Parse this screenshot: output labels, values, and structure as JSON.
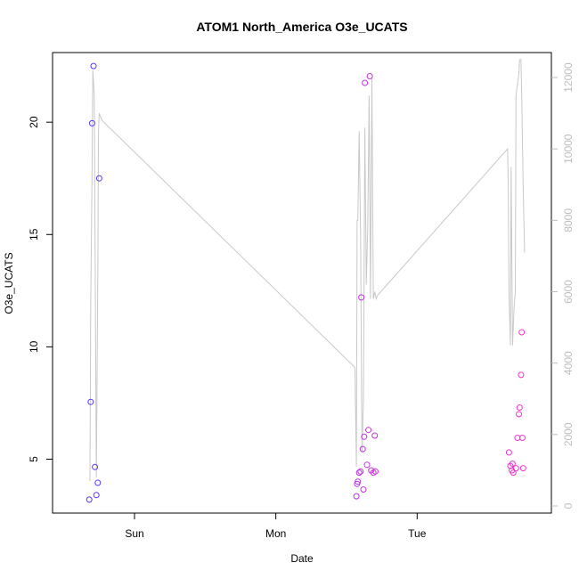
{
  "chart_data": {
    "type": "scatter",
    "title": "ATOM1 North_America O3e_UCATS",
    "xlabel": "Date",
    "ylabel": "O3e_UCATS",
    "x_ticks": [
      {
        "label": "Sun",
        "value": 1.0
      },
      {
        "label": "Mon",
        "value": 2.0
      },
      {
        "label": "Tue",
        "value": 3.0
      }
    ],
    "xlim": [
      0.42,
      3.95
    ],
    "ylim": [
      2.6,
      23.1
    ],
    "y_ticks": [
      5,
      10,
      15,
      20
    ],
    "y2lim": [
      -200,
      12700
    ],
    "y2_ticks": [
      0,
      2000,
      4000,
      6000,
      8000,
      10000,
      12000
    ],
    "grid": false,
    "colors": {
      "altitude_line": "#c8c8c8",
      "point_low_start": "#5533ff",
      "point_high_end": "#ff33cc"
    },
    "points": [
      {
        "x": 0.68,
        "y": 3.2,
        "c": 0.0
      },
      {
        "x": 0.69,
        "y": 7.55,
        "c": 0.02
      },
      {
        "x": 0.7,
        "y": 19.95,
        "c": 0.03
      },
      {
        "x": 0.71,
        "y": 22.5,
        "c": 0.04
      },
      {
        "x": 0.72,
        "y": 4.65,
        "c": 0.05
      },
      {
        "x": 0.73,
        "y": 3.4,
        "c": 0.06
      },
      {
        "x": 0.74,
        "y": 3.95,
        "c": 0.07
      },
      {
        "x": 0.75,
        "y": 17.5,
        "c": 0.08
      },
      {
        "x": 2.57,
        "y": 3.35,
        "c": 0.55
      },
      {
        "x": 2.575,
        "y": 3.9,
        "c": 0.56
      },
      {
        "x": 2.58,
        "y": 4.0,
        "c": 0.57
      },
      {
        "x": 2.59,
        "y": 4.4,
        "c": 0.58
      },
      {
        "x": 2.6,
        "y": 4.45,
        "c": 0.59
      },
      {
        "x": 2.605,
        "y": 12.2,
        "c": 0.6
      },
      {
        "x": 2.615,
        "y": 5.45,
        "c": 0.61
      },
      {
        "x": 2.62,
        "y": 3.65,
        "c": 0.62
      },
      {
        "x": 2.625,
        "y": 6.0,
        "c": 0.63
      },
      {
        "x": 2.63,
        "y": 21.75,
        "c": 0.64
      },
      {
        "x": 2.645,
        "y": 4.75,
        "c": 0.65
      },
      {
        "x": 2.655,
        "y": 6.3,
        "c": 0.66
      },
      {
        "x": 2.665,
        "y": 22.05,
        "c": 0.67
      },
      {
        "x": 2.675,
        "y": 4.5,
        "c": 0.68
      },
      {
        "x": 2.69,
        "y": 4.4,
        "c": 0.69
      },
      {
        "x": 2.7,
        "y": 6.05,
        "c": 0.7
      },
      {
        "x": 2.705,
        "y": 4.45,
        "c": 0.71
      },
      {
        "x": 3.65,
        "y": 5.3,
        "c": 0.9
      },
      {
        "x": 3.66,
        "y": 4.7,
        "c": 0.91
      },
      {
        "x": 3.67,
        "y": 4.5,
        "c": 0.92
      },
      {
        "x": 3.675,
        "y": 4.8,
        "c": 0.93
      },
      {
        "x": 3.68,
        "y": 4.4,
        "c": 0.94
      },
      {
        "x": 3.7,
        "y": 4.6,
        "c": 0.95
      },
      {
        "x": 3.71,
        "y": 5.95,
        "c": 0.96
      },
      {
        "x": 3.72,
        "y": 7.0,
        "c": 0.97
      },
      {
        "x": 3.725,
        "y": 7.3,
        "c": 0.975
      },
      {
        "x": 3.735,
        "y": 8.75,
        "c": 0.98
      },
      {
        "x": 3.74,
        "y": 10.65,
        "c": 0.99
      },
      {
        "x": 3.745,
        "y": 5.95,
        "c": 1.0
      },
      {
        "x": 3.75,
        "y": 4.6,
        "c": 1.0
      }
    ],
    "altitude_series": {
      "axis": "right",
      "x": [
        0.685,
        0.69,
        0.7,
        0.705,
        0.715,
        0.73,
        0.74,
        0.745,
        0.75,
        0.76,
        0.77,
        2.555,
        2.56,
        2.57,
        2.575,
        2.58,
        2.59,
        2.6,
        2.61,
        2.62,
        2.63,
        2.64,
        2.65,
        2.66,
        2.67,
        2.68,
        2.69,
        2.7,
        2.71,
        2.72,
        3.64,
        3.645,
        3.65,
        3.66,
        3.665,
        3.675,
        3.685,
        3.695,
        3.7,
        3.71,
        3.72,
        3.725,
        3.735,
        3.74,
        3.75,
        3.76
      ],
      "y": [
        700,
        5500,
        9500,
        12200,
        11500,
        800,
        6500,
        10500,
        11000,
        10900,
        10800,
        3900,
        3850,
        1100,
        8000,
        8000,
        10500,
        7600,
        1500,
        3000,
        10600,
        6200,
        7800,
        11500,
        5800,
        12000,
        5800,
        6000,
        5800,
        5900,
        10000,
        9000,
        6000,
        4500,
        9500,
        4500,
        5500,
        6000,
        11500,
        11800,
        12100,
        12500,
        12500,
        11500,
        9000,
        7100
      ]
    }
  }
}
